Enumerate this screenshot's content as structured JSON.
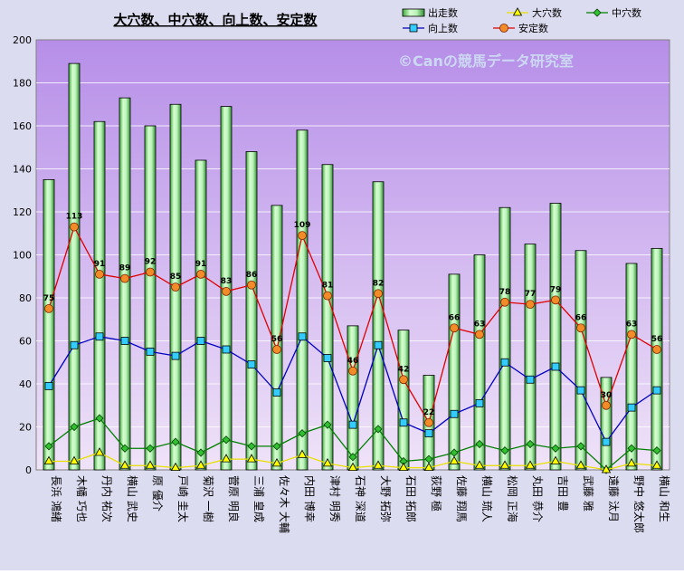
{
  "chart_data": {
    "type": "bar",
    "title": "大穴数、中穴数、向上数、安定数",
    "watermark": "©Canの競馬データ研究室",
    "ylim": [
      0,
      200
    ],
    "yticks": [
      0,
      20,
      40,
      60,
      80,
      100,
      120,
      140,
      160,
      180,
      200
    ],
    "grid": true,
    "legend_position": "top-right",
    "categories": [
      "長浜 鴻緒",
      "木幡 巧也",
      "丹内 祐次",
      "横山 武史",
      "原 優介",
      "戸崎 圭太",
      "菊沢 一樹",
      "菅原 明良",
      "三浦 皇成",
      "佐々木 大輔",
      "内田 博幸",
      "津村 明秀",
      "石神 深道",
      "大野 拓弥",
      "石田 拓郎",
      "荻野 極",
      "佐藤 翔馬",
      "横山 琉人",
      "松岡 正海",
      "丸田 恭介",
      "吉田 豊",
      "武藤 雅",
      "遠藤 汰月",
      "野中 悠太郎",
      "横山 和生"
    ],
    "series": [
      {
        "name": "出走数",
        "type": "bar",
        "color": "#b8f0b8",
        "values": [
          135,
          189,
          162,
          173,
          160,
          170,
          144,
          169,
          148,
          123,
          158,
          142,
          67,
          134,
          65,
          44,
          91,
          100,
          122,
          105,
          124,
          102,
          43,
          96,
          103
        ]
      },
      {
        "name": "大穴数",
        "type": "line",
        "color": "#e8e000",
        "values": [
          4,
          4,
          8,
          2,
          2,
          1,
          2,
          5,
          5,
          3,
          7,
          3,
          1,
          2,
          1,
          1,
          4,
          2,
          2,
          2,
          4,
          2,
          0,
          3,
          2
        ]
      },
      {
        "name": "中穴数",
        "type": "line",
        "color": "#008000",
        "values": [
          11,
          20,
          24,
          10,
          10,
          13,
          8,
          14,
          11,
          11,
          17,
          21,
          6,
          19,
          4,
          5,
          8,
          12,
          9,
          12,
          10,
          11,
          0,
          10,
          9
        ]
      },
      {
        "name": "向上数",
        "type": "line",
        "color": "#0000c0",
        "values": [
          39,
          58,
          62,
          60,
          55,
          53,
          60,
          56,
          49,
          36,
          62,
          52,
          21,
          58,
          22,
          17,
          26,
          31,
          50,
          42,
          48,
          37,
          13,
          29,
          37
        ]
      },
      {
        "name": "安定数",
        "type": "line",
        "color": "#e00000",
        "values": [
          75,
          113,
          91,
          89,
          92,
          85,
          91,
          83,
          86,
          56,
          109,
          81,
          46,
          82,
          42,
          22,
          66,
          63,
          78,
          77,
          79,
          66,
          30,
          63,
          56
        ],
        "data_labels": true
      }
    ]
  }
}
